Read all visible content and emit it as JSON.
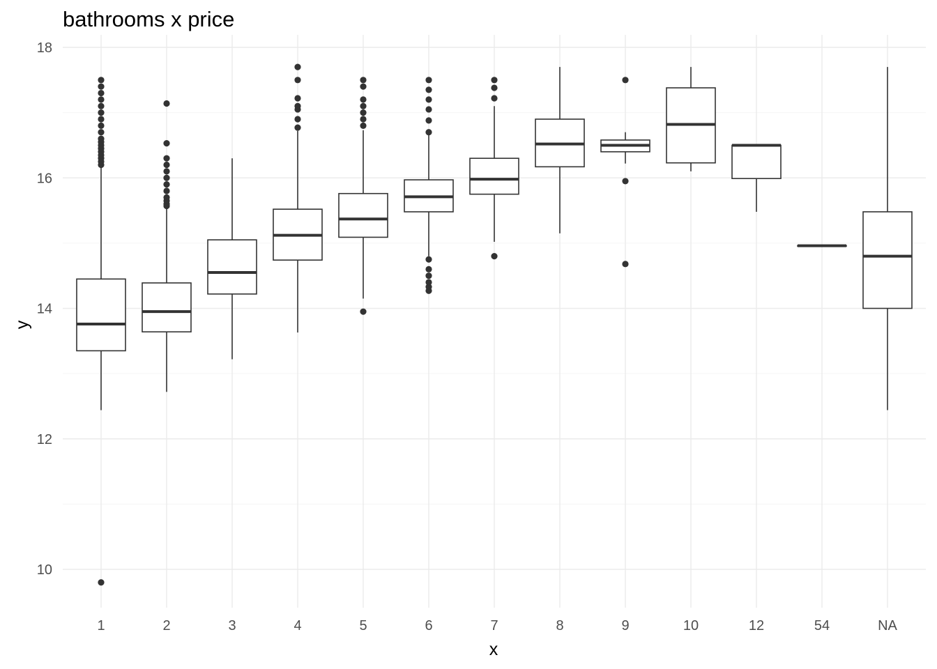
{
  "chart_data": {
    "type": "boxplot",
    "title": "bathrooms x price",
    "xlabel": "x",
    "ylabel": "y",
    "ylim": [
      9.4,
      18.05
    ],
    "y_ticks": [
      10,
      12,
      14,
      16,
      18
    ],
    "grid": true,
    "categories": [
      "1",
      "2",
      "3",
      "4",
      "5",
      "6",
      "7",
      "8",
      "9",
      "10",
      "12",
      "54",
      "NA"
    ],
    "boxes": [
      {
        "category": "1",
        "whisker_low": 12.44,
        "q1": 13.35,
        "median": 13.76,
        "q3": 14.45,
        "whisker_high": 16.17,
        "outliers": [
          9.8,
          16.2,
          16.25,
          16.3,
          16.35,
          16.4,
          16.45,
          16.5,
          16.55,
          16.6,
          16.7,
          16.8,
          16.9,
          17.0,
          17.1,
          17.2,
          17.3,
          17.4,
          17.5
        ]
      },
      {
        "category": "2",
        "whisker_low": 12.72,
        "q1": 13.64,
        "median": 13.95,
        "q3": 14.39,
        "whisker_high": 15.55,
        "outliers": [
          15.57,
          15.6,
          15.65,
          15.7,
          15.8,
          15.9,
          16.0,
          16.1,
          16.2,
          16.3,
          16.53,
          17.14
        ]
      },
      {
        "category": "3",
        "whisker_low": 13.22,
        "q1": 14.22,
        "median": 14.55,
        "q3": 15.05,
        "whisker_high": 16.3,
        "outliers": []
      },
      {
        "category": "4",
        "whisker_low": 13.63,
        "q1": 14.74,
        "median": 15.12,
        "q3": 15.52,
        "whisker_high": 16.72,
        "outliers": [
          16.77,
          16.9,
          17.05,
          17.1,
          17.22,
          17.5,
          17.7
        ]
      },
      {
        "category": "5",
        "whisker_low": 14.15,
        "q1": 15.09,
        "median": 15.37,
        "q3": 15.76,
        "whisker_high": 16.73,
        "outliers": [
          13.95,
          16.8,
          16.9,
          17.0,
          17.1,
          17.2,
          17.4,
          17.5
        ]
      },
      {
        "category": "6",
        "whisker_low": 14.8,
        "q1": 15.48,
        "median": 15.71,
        "q3": 15.97,
        "whisker_high": 16.68,
        "outliers": [
          14.27,
          14.33,
          14.4,
          14.5,
          14.6,
          14.75,
          16.7,
          16.88,
          17.05,
          17.2,
          17.35,
          17.5
        ]
      },
      {
        "category": "7",
        "whisker_low": 15.02,
        "q1": 15.75,
        "median": 15.98,
        "q3": 16.3,
        "whisker_high": 17.1,
        "outliers": [
          14.8,
          17.22,
          17.38,
          17.5
        ]
      },
      {
        "category": "8",
        "whisker_low": 15.15,
        "q1": 16.17,
        "median": 16.52,
        "q3": 16.9,
        "whisker_high": 17.7,
        "outliers": []
      },
      {
        "category": "9",
        "whisker_low": 16.22,
        "q1": 16.4,
        "median": 16.5,
        "q3": 16.58,
        "whisker_high": 16.7,
        "outliers": [
          14.68,
          15.95,
          17.5
        ]
      },
      {
        "category": "10",
        "whisker_low": 16.1,
        "q1": 16.23,
        "median": 16.82,
        "q3": 17.38,
        "whisker_high": 17.7,
        "outliers": []
      },
      {
        "category": "12",
        "whisker_low": 15.48,
        "q1": 15.99,
        "median": 16.5,
        "q3": 16.5,
        "whisker_high": 16.5,
        "outliers": []
      },
      {
        "category": "54",
        "whisker_low": 14.96,
        "q1": 14.96,
        "median": 14.96,
        "q3": 14.96,
        "whisker_high": 14.96,
        "outliers": []
      },
      {
        "category": "NA",
        "whisker_low": 12.44,
        "q1": 14.0,
        "median": 14.8,
        "q3": 15.48,
        "whisker_high": 17.7,
        "outliers": []
      }
    ],
    "colors": {
      "box_line": "#333333",
      "outlier": "#333333",
      "grid_major": "#ebebeb",
      "grid_minor": "#f5f5f5",
      "tick_text": "#4d4d4d",
      "title_text": "#000000"
    }
  }
}
